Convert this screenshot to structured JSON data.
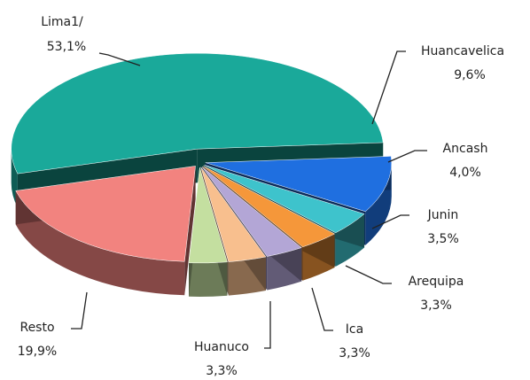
{
  "chart_data": {
    "type": "pie",
    "categories": [
      "Lima1/",
      "Huancavelica",
      "Ancash",
      "Junin",
      "Arequipa",
      "Ica",
      "Huanuco",
      "Resto"
    ],
    "values": [
      53.1,
      9.6,
      4.0,
      3.5,
      3.3,
      3.3,
      3.3,
      19.9
    ],
    "value_labels": [
      "53,1%",
      "9,6%",
      "4,0%",
      "3,5%",
      "3,3%",
      "3,3%",
      "3,3%",
      "19,9%"
    ],
    "colors": [
      "#1aa99a",
      "#1f6fe0",
      "#3ec3cc",
      "#f5973a",
      "#b3a6d6",
      "#f8bf8e",
      "#c4dfa0",
      "#f2837f"
    ]
  }
}
